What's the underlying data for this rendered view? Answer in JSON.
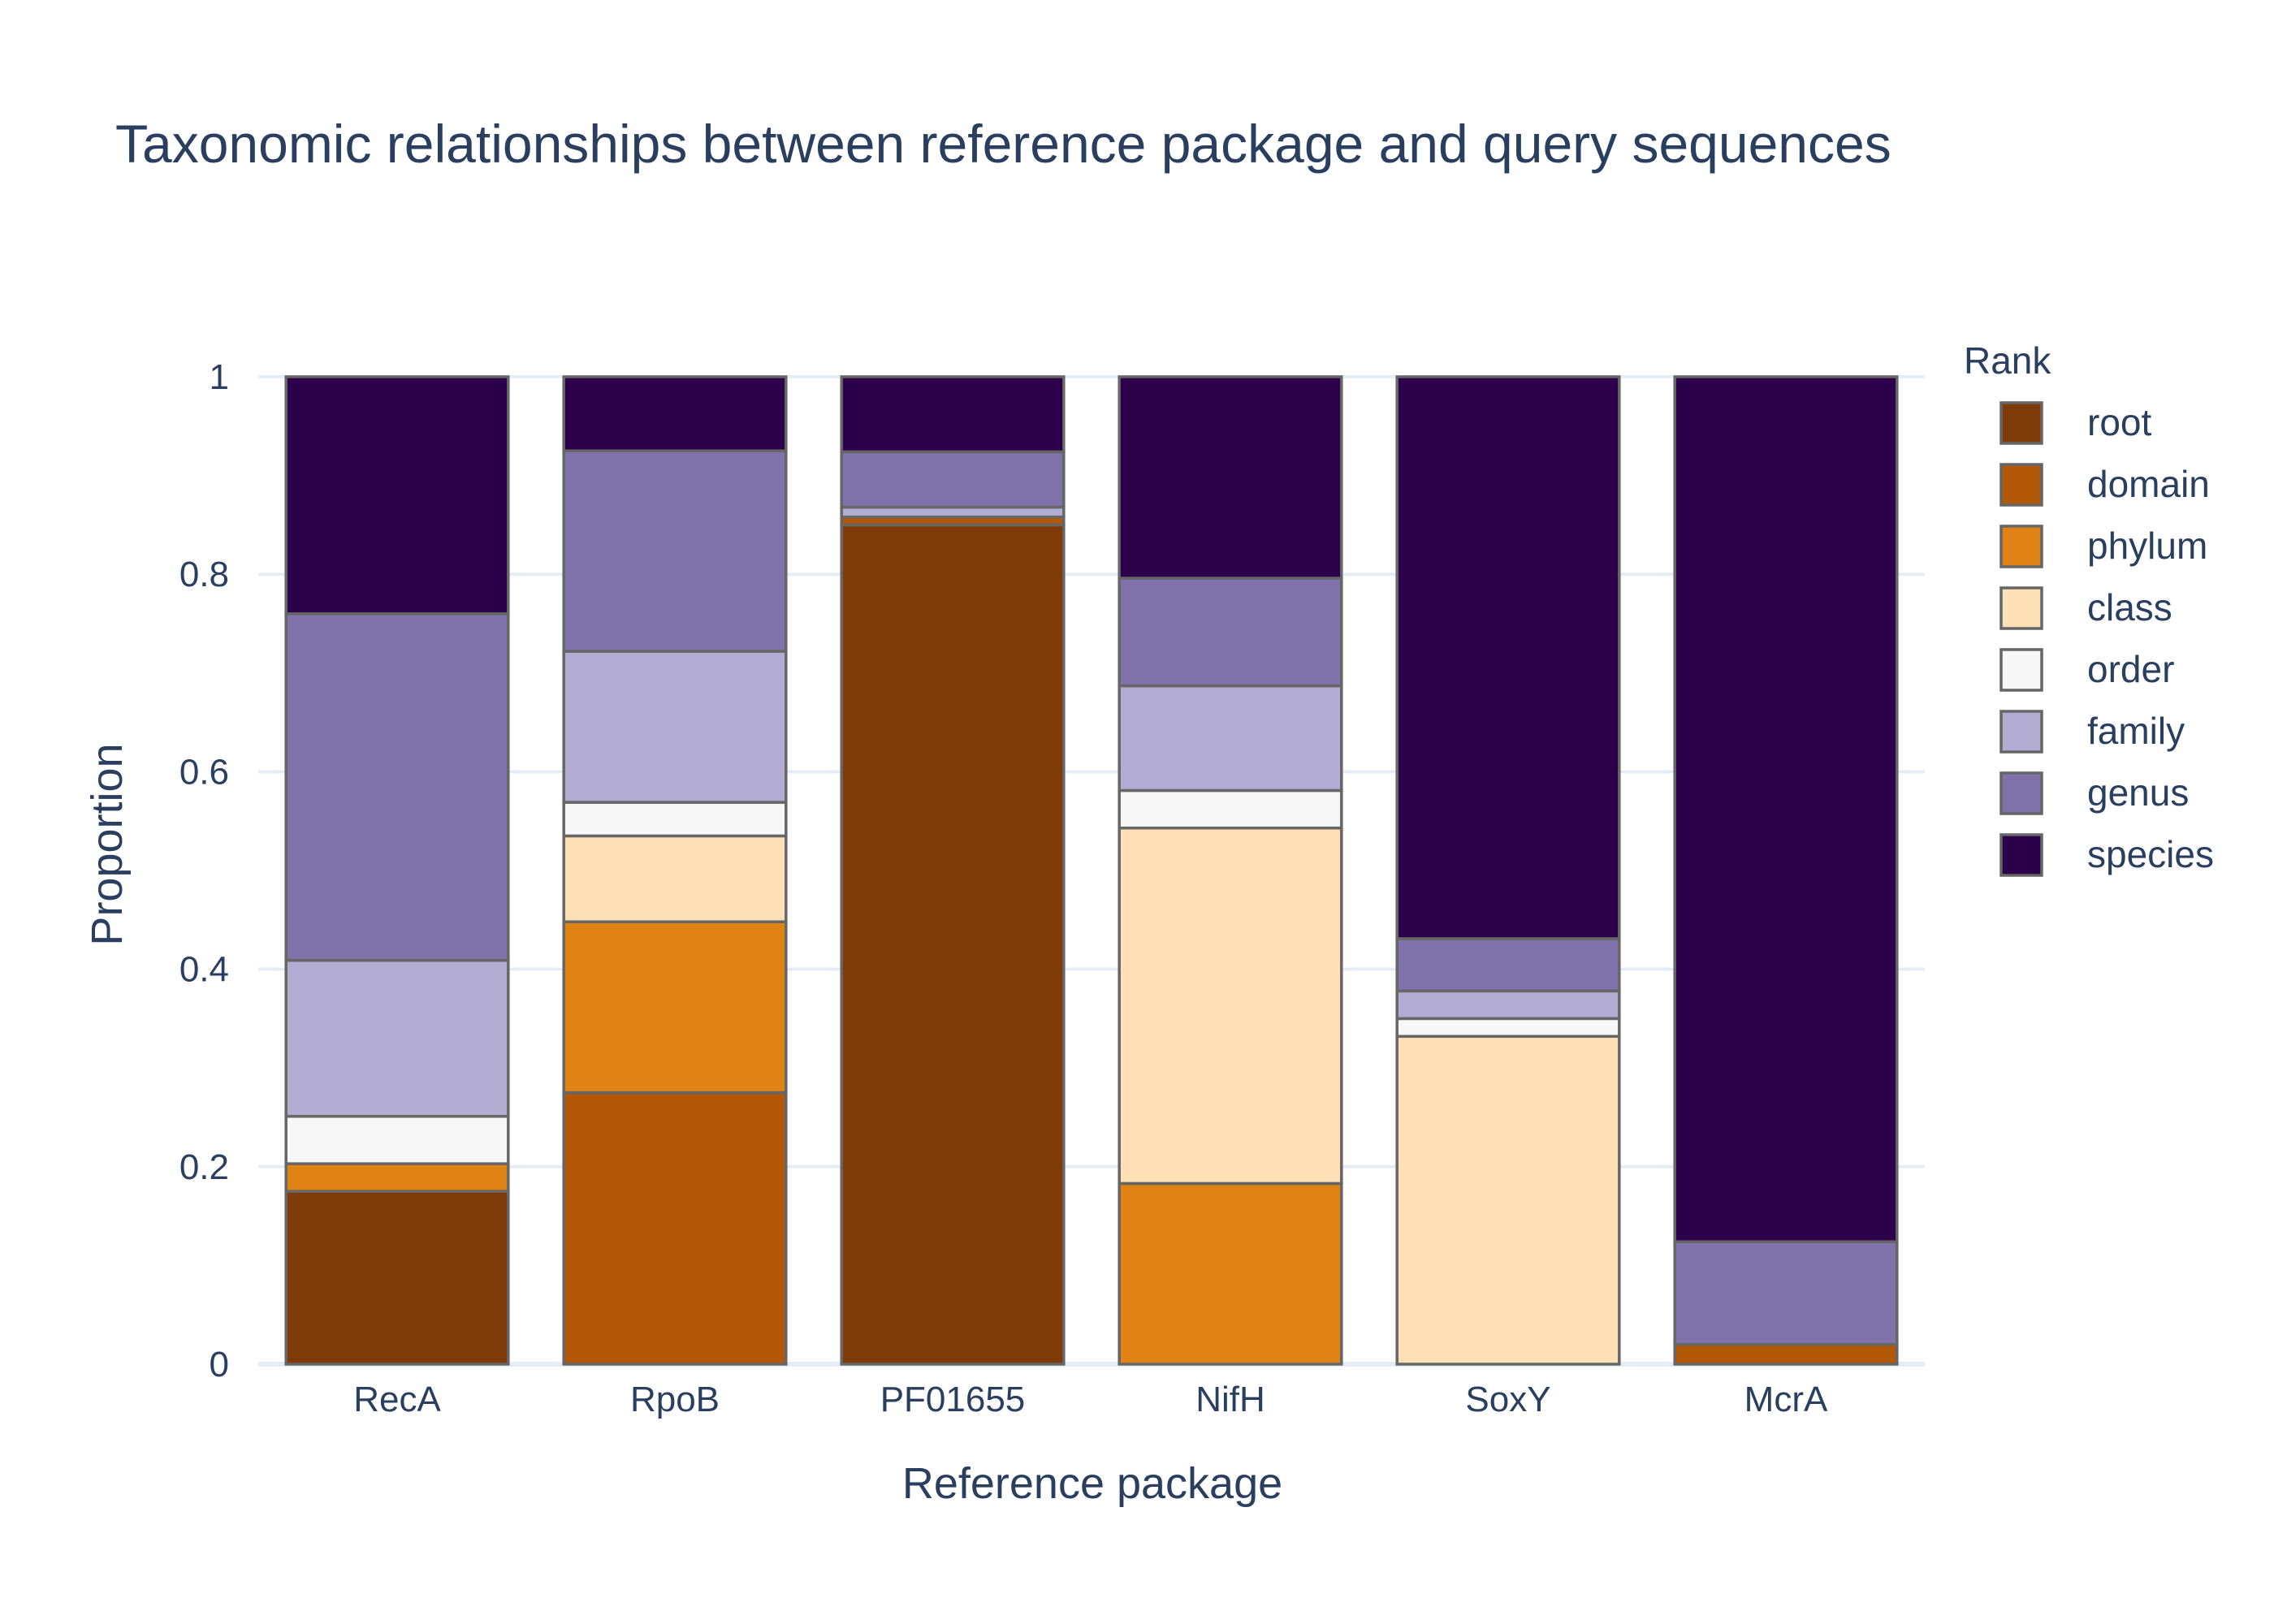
{
  "chart_data": {
    "type": "bar",
    "stacked": true,
    "title": "Taxonomic relationships between reference package and query sequences",
    "xlabel": "Reference package",
    "ylabel": "Proportion",
    "ylim": [
      0,
      1
    ],
    "yticks": [
      0,
      0.2,
      0.4,
      0.6,
      0.8,
      1
    ],
    "ytick_labels": [
      "0",
      "0.2",
      "0.4",
      "0.6",
      "0.8",
      "1"
    ],
    "grid": true,
    "legend_title": "Rank",
    "legend_position": "right",
    "categories": [
      "RecA",
      "RpoB",
      "PF01655",
      "NifH",
      "SoxY",
      "McrA"
    ],
    "series": [
      {
        "name": "root",
        "color": "#7f3b08",
        "values": [
          0.175,
          0.0,
          0.85,
          0.0,
          0.0,
          0.0
        ]
      },
      {
        "name": "domain",
        "color": "#b35806",
        "values": [
          0.0,
          0.275,
          0.008,
          0.0,
          0.0,
          0.02
        ]
      },
      {
        "name": "phylum",
        "color": "#e08214",
        "values": [
          0.028,
          0.173,
          0.0,
          0.183,
          0.0,
          0.0
        ]
      },
      {
        "name": "class",
        "color": "#fee0b6",
        "values": [
          0.0,
          0.087,
          0.0,
          0.36,
          0.332,
          0.0
        ]
      },
      {
        "name": "order",
        "color": "#f7f7f7",
        "values": [
          0.048,
          0.034,
          0.0,
          0.038,
          0.018,
          0.0
        ]
      },
      {
        "name": "family",
        "color": "#b2abd2",
        "values": [
          0.158,
          0.153,
          0.01,
          0.106,
          0.028,
          0.0
        ]
      },
      {
        "name": "genus",
        "color": "#8073ac",
        "values": [
          0.351,
          0.203,
          0.056,
          0.109,
          0.053,
          0.104
        ]
      },
      {
        "name": "species",
        "color": "#2d004b",
        "values": [
          0.24,
          0.075,
          0.076,
          0.204,
          0.569,
          0.876
        ]
      }
    ],
    "bar_outline_color": "#666666",
    "grid_color": "#e5ecf6",
    "text_color": "#2a3f5f"
  }
}
